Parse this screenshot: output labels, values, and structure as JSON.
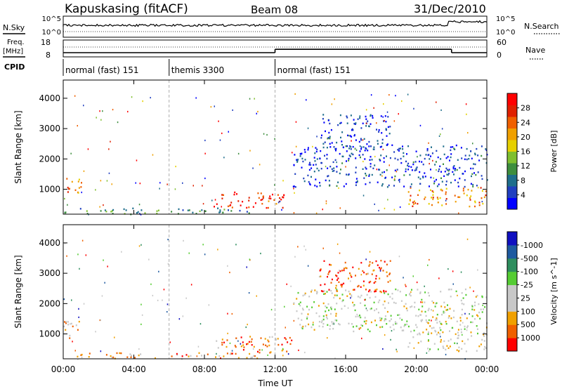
{
  "header": {
    "title": "Kapuskasing (fitACF)",
    "beam": "Beam 08",
    "date": "31/Dec/2010"
  },
  "summary": {
    "nsky_label": "N.Sky",
    "nsearch_label": "N.Search",
    "freq_label_line1": "Freq.",
    "freq_label_line2": "[MHz]",
    "nave_label": "Nave",
    "cpid_label": "CPID",
    "left_ticks_top": [
      "10^5",
      "10^0"
    ],
    "right_ticks_top": [
      "10^5",
      "10^0"
    ],
    "left_ticks_freq": [
      "18",
      "8"
    ],
    "right_ticks_nave": [
      "60",
      "0"
    ],
    "modes": [
      {
        "label": "normal (fast) 151",
        "start_hour": 0,
        "end_hour": 6
      },
      {
        "label": "themis 3300",
        "start_hour": 6,
        "end_hour": 12
      },
      {
        "label": "normal (fast) 151",
        "start_hour": 12,
        "end_hour": 24
      }
    ],
    "freq_segments": [
      {
        "start_hour": 0,
        "end_hour": 12,
        "mhz": 10.5
      },
      {
        "start_hour": 12,
        "end_hour": 22,
        "mhz": 12.5
      },
      {
        "start_hour": 22,
        "end_hour": 24,
        "mhz": 10.5
      }
    ]
  },
  "colors": {
    "power": [
      "#0000ff",
      "#2040c0",
      "#1e6e8c",
      "#3e8e3e",
      "#7fbf2f",
      "#e6d000",
      "#f0a000",
      "#f06000",
      "#e02000",
      "#ff0000"
    ],
    "velocity": [
      "#ff0000",
      "#f06000",
      "#f0a000",
      "#c8c8c8",
      "#c8c8c8",
      "#55cc33",
      "#2e8e5e",
      "#1e5aa0",
      "#1010c0"
    ]
  },
  "chart_data": [
    {
      "type": "heatmap",
      "title": "",
      "xlabel": "",
      "ylabel": "Slant Range [km]",
      "xlim": [
        0,
        24
      ],
      "ylim": [
        180,
        4600
      ],
      "x_ticks": [
        "00:00",
        "04:00",
        "08:00",
        "12:00",
        "16:00",
        "20:00",
        "00:00"
      ],
      "y_ticks": [
        1000,
        2000,
        3000,
        4000
      ],
      "colorbar_label": "Power [dB]",
      "colorbar_ticks": [
        "4",
        "8",
        "12",
        "16",
        "20",
        "24",
        "28"
      ],
      "regions": [
        {
          "name": "early-echo",
          "t": [
            0,
            1.0
          ],
          "r": [
            800,
            1450
          ],
          "level": 0.7
        },
        {
          "name": "near-range-low",
          "t": [
            0,
            11
          ],
          "r": [
            200,
            400
          ],
          "level": 0.3
        },
        {
          "name": "themis-ground",
          "t": [
            8.5,
            12.5
          ],
          "r": [
            400,
            950
          ],
          "level": 0.85
        },
        {
          "name": "evening-band",
          "t": [
            19.5,
            24
          ],
          "r": [
            450,
            1100
          ],
          "level": 0.7
        },
        {
          "name": "mid-range-blue",
          "t": [
            13,
            24
          ],
          "r": [
            1100,
            2500
          ],
          "level": 0.15
        },
        {
          "name": "far-blue",
          "t": [
            14.5,
            18.5
          ],
          "r": [
            2400,
            3500
          ],
          "level": 0.15
        }
      ]
    },
    {
      "type": "heatmap",
      "title": "",
      "xlabel": "Time UT",
      "ylabel": "Slant Range [km]",
      "xlim": [
        0,
        24
      ],
      "ylim": [
        180,
        4600
      ],
      "x_ticks": [
        "00:00",
        "04:00",
        "08:00",
        "12:00",
        "16:00",
        "20:00",
        "00:00"
      ],
      "y_ticks": [
        1000,
        2000,
        3000,
        4000
      ],
      "colorbar_label": "Velocity [m s^-1]",
      "colorbar_ticks": [
        "1000",
        "500",
        "100",
        "25",
        "-25",
        "-100",
        "-500",
        "-1000"
      ],
      "regions": [
        {
          "name": "early-echo",
          "t": [
            0,
            1.0
          ],
          "r": [
            800,
            1450
          ],
          "level": 0.3
        },
        {
          "name": "near-range-low",
          "t": [
            0,
            11
          ],
          "r": [
            200,
            400
          ],
          "level": 0.25
        },
        {
          "name": "themis-ground",
          "t": [
            8.5,
            13
          ],
          "r": [
            400,
            950
          ],
          "level": 0.2
        },
        {
          "name": "evening-band",
          "t": [
            19.5,
            24
          ],
          "r": [
            450,
            1100
          ],
          "level": 0.42
        },
        {
          "name": "mid-range",
          "t": [
            13,
            24
          ],
          "r": [
            1100,
            2500
          ],
          "level": 0.45
        },
        {
          "name": "far",
          "t": [
            14.5,
            18.5
          ],
          "r": [
            2400,
            3500
          ],
          "level": 0.1
        }
      ]
    }
  ]
}
